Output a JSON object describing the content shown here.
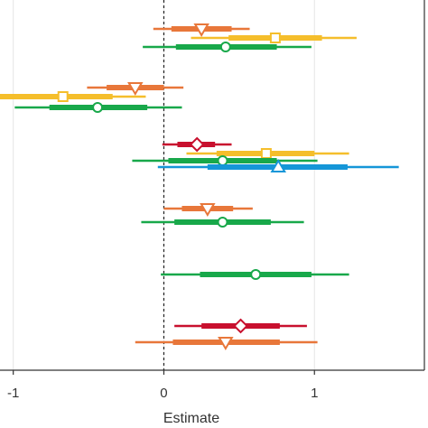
{
  "chart_data": {
    "type": "scatter",
    "subtype": "coefficient-plot",
    "xlabel": "Estimate",
    "xlim": [
      -1.1,
      1.73
    ],
    "xticks": [
      -1,
      0,
      1
    ],
    "xtick_labels": [
      "-1",
      "0",
      "1"
    ],
    "reference_line": {
      "x": 0,
      "style": "dashed"
    },
    "grid": "vertical",
    "legend": "none",
    "colors": {
      "orange": "#E8773A",
      "yellow": "#F5BE2B",
      "green": "#18A84A",
      "red": "#C8102E",
      "blue": "#1596D8"
    },
    "rows": [
      {
        "color": "orange",
        "marker": "triangle-down",
        "estimate": 0.25,
        "ci_inner": [
          0.05,
          0.45
        ],
        "ci_outer": [
          -0.07,
          0.57
        ]
      },
      {
        "color": "yellow",
        "marker": "square",
        "estimate": 0.74,
        "ci_inner": [
          0.43,
          1.05
        ],
        "ci_outer": [
          0.18,
          1.28
        ]
      },
      {
        "color": "green",
        "marker": "circle",
        "estimate": 0.41,
        "ci_inner": [
          0.08,
          0.75
        ],
        "ci_outer": [
          -0.14,
          0.98
        ]
      },
      {
        "color": "orange",
        "marker": "triangle-down",
        "estimate": -0.19,
        "ci_inner": [
          -0.38,
          0.0
        ],
        "ci_outer": [
          -0.51,
          0.13
        ]
      },
      {
        "color": "yellow",
        "marker": "square",
        "estimate": -0.67,
        "ci_inner": [
          -1.1,
          -0.34
        ],
        "ci_outer": [
          -1.1,
          -0.12
        ]
      },
      {
        "color": "green",
        "marker": "circle",
        "estimate": -0.44,
        "ci_inner": [
          -0.76,
          -0.11
        ],
        "ci_outer": [
          -0.99,
          0.12
        ]
      },
      {
        "color": "red",
        "marker": "diamond",
        "estimate": 0.22,
        "ci_inner": [
          0.09,
          0.34
        ],
        "ci_outer": [
          -0.01,
          0.45
        ]
      },
      {
        "color": "yellow",
        "marker": "square",
        "estimate": 0.68,
        "ci_inner": [
          0.35,
          1.0
        ],
        "ci_outer": [
          0.15,
          1.23
        ]
      },
      {
        "color": "green",
        "marker": "circle",
        "estimate": 0.39,
        "ci_inner": [
          0.03,
          0.75
        ],
        "ci_outer": [
          -0.21,
          1.02
        ]
      },
      {
        "color": "blue",
        "marker": "triangle-up",
        "estimate": 0.76,
        "ci_inner": [
          0.29,
          1.22
        ],
        "ci_outer": [
          -0.04,
          1.56
        ]
      },
      {
        "color": "orange",
        "marker": "triangle-down",
        "estimate": 0.29,
        "ci_inner": [
          0.12,
          0.46
        ],
        "ci_outer": [
          0.0,
          0.59
        ]
      },
      {
        "color": "green",
        "marker": "circle",
        "estimate": 0.39,
        "ci_inner": [
          0.07,
          0.71
        ],
        "ci_outer": [
          -0.15,
          0.93
        ]
      },
      {
        "color": "green",
        "marker": "circle",
        "estimate": 0.61,
        "ci_inner": [
          0.24,
          0.98
        ],
        "ci_outer": [
          -0.02,
          1.23
        ]
      },
      {
        "color": "red",
        "marker": "diamond",
        "estimate": 0.51,
        "ci_inner": [
          0.25,
          0.77
        ],
        "ci_outer": [
          0.07,
          0.95
        ]
      },
      {
        "color": "orange",
        "marker": "triangle-down",
        "estimate": 0.41,
        "ci_inner": [
          0.06,
          0.77
        ],
        "ci_outer": [
          -0.19,
          1.02
        ]
      }
    ]
  }
}
